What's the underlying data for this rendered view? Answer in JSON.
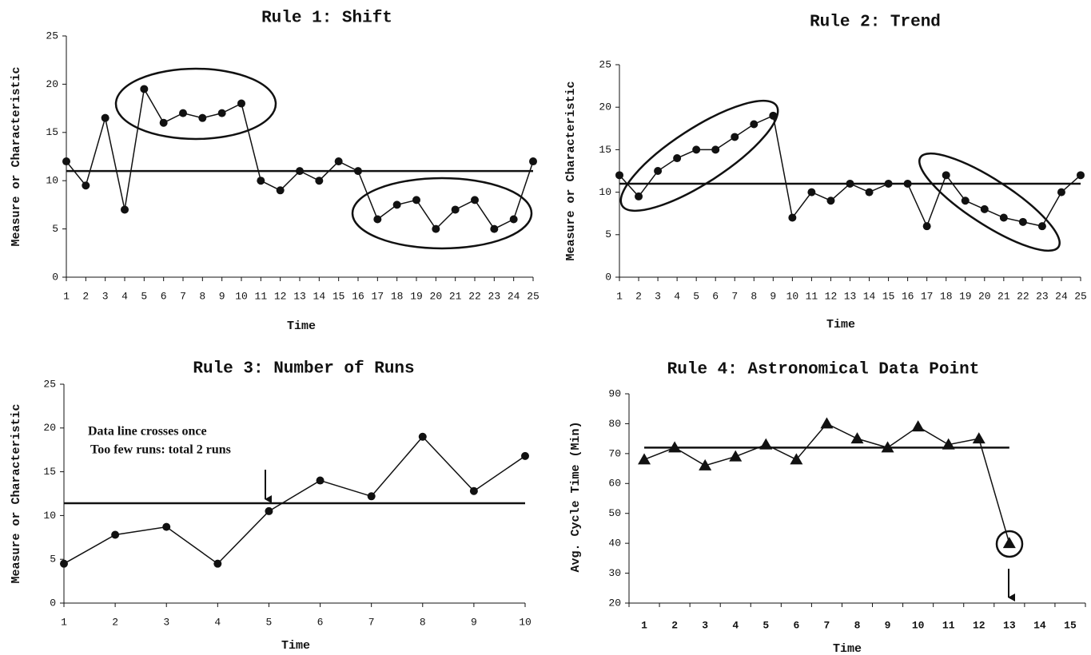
{
  "chart_data": [
    {
      "type": "line",
      "title": "Rule 1: Shift",
      "x_label": "Time",
      "y_label": "Measure or Characteristic",
      "categories": [
        1,
        2,
        3,
        4,
        5,
        6,
        7,
        8,
        9,
        10,
        11,
        12,
        13,
        14,
        15,
        16,
        17,
        18,
        19,
        20,
        21,
        22,
        23,
        24,
        25
      ],
      "values": [
        12,
        9.5,
        16.5,
        7,
        19.5,
        16,
        17,
        16.5,
        17,
        18,
        10,
        9,
        11,
        10,
        12,
        11,
        6,
        7.5,
        8,
        5,
        7,
        8,
        5,
        6,
        12
      ],
      "center_line": 11,
      "ylim": [
        0,
        25
      ],
      "yticks": [
        0,
        5,
        10,
        15,
        20,
        25
      ],
      "marker": "circle",
      "color": "#111111"
    },
    {
      "type": "line",
      "title": "Rule 2: Trend",
      "x_label": "Time",
      "y_label": "Measure or Characteristic",
      "categories": [
        1,
        2,
        3,
        4,
        5,
        6,
        7,
        8,
        9,
        10,
        11,
        12,
        13,
        14,
        15,
        16,
        17,
        18,
        19,
        20,
        21,
        22,
        23,
        24,
        25
      ],
      "values": [
        12,
        9.5,
        12.5,
        14,
        15,
        15,
        16.5,
        18,
        19,
        7,
        10,
        9,
        11,
        10,
        11,
        11,
        6,
        12,
        9,
        8,
        7,
        6.5,
        6,
        10,
        12
      ],
      "center_line": 11,
      "ylim": [
        0,
        25
      ],
      "yticks": [
        0,
        5,
        10,
        15,
        20,
        25
      ],
      "marker": "circle",
      "color": "#111111"
    },
    {
      "type": "line",
      "title": "Rule 3: Number of Runs",
      "x_label": "Time",
      "y_label": "Measure or Characteristic",
      "categories": [
        1,
        2,
        3,
        4,
        5,
        6,
        7,
        8,
        9,
        10
      ],
      "values": [
        4.5,
        7.8,
        8.7,
        4.5,
        10.5,
        14,
        12.2,
        19,
        12.8,
        16.8
      ],
      "center_line": 11.4,
      "ylim": [
        0,
        25
      ],
      "yticks": [
        0,
        5,
        10,
        15,
        20,
        25
      ],
      "marker": "circle",
      "color": "#111111",
      "annotations": [
        "Data line crosses once",
        "Too few runs: total 2 runs"
      ]
    },
    {
      "type": "line",
      "title": "Rule 4: Astronomical Data Point",
      "x_label": "Time",
      "y_label": "Avg. Cycle Time (Min)",
      "categories": [
        1,
        2,
        3,
        4,
        5,
        6,
        7,
        8,
        9,
        10,
        11,
        12,
        13,
        14,
        15
      ],
      "values": [
        68,
        72,
        66,
        69,
        73,
        68,
        80,
        75,
        72,
        79,
        73,
        75,
        40,
        null,
        null
      ],
      "center_line": 72,
      "ylim": [
        20,
        90
      ],
      "yticks": [
        20,
        30,
        40,
        50,
        60,
        70,
        80,
        90
      ],
      "marker": "triangle",
      "color": "#111111"
    }
  ]
}
